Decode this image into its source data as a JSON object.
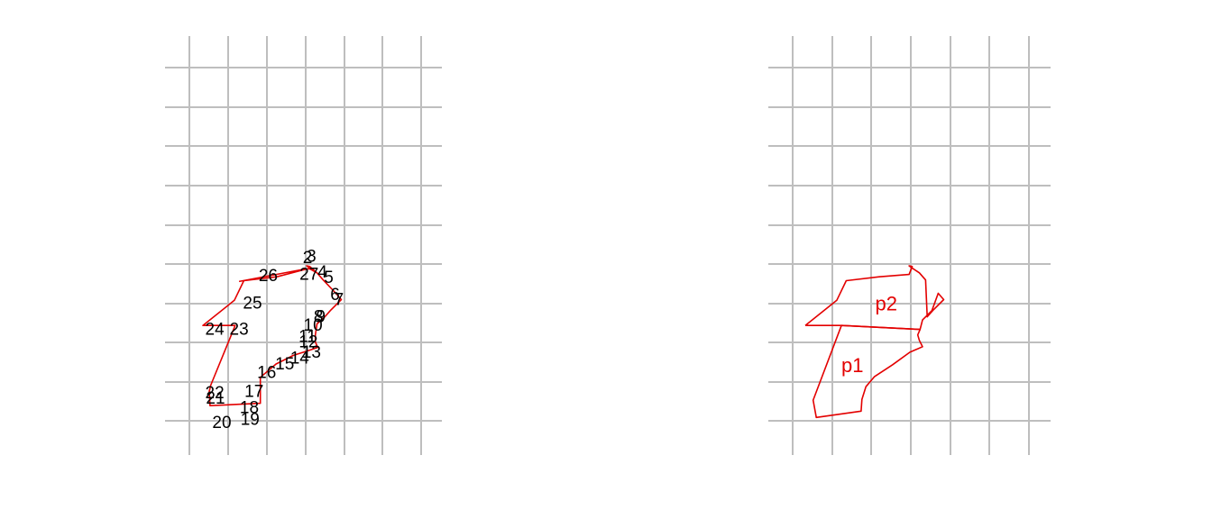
{
  "colors": {
    "polygon": "#e30000",
    "grid": "#bebebe",
    "label": "#000000",
    "background": "#ffffff"
  },
  "left_panel": {
    "outline": [
      [
        1.63,
        1.75
      ],
      [
        2.48,
        1.91
      ],
      [
        2.53,
        1.91
      ],
      [
        2.62,
        1.86
      ],
      [
        2.7,
        1.77
      ],
      [
        2.86,
        1.6
      ],
      [
        2.93,
        1.52
      ],
      [
        2.79,
        1.38
      ],
      [
        2.72,
        1.3
      ],
      [
        2.62,
        1.21
      ],
      [
        2.6,
        1.07
      ],
      [
        2.6,
        0.98
      ],
      [
        2.63,
        0.91
      ],
      [
        2.48,
        0.86
      ],
      [
        2.32,
        0.81
      ],
      [
        2.1,
        0.7
      ],
      [
        1.9,
        0.53
      ],
      [
        1.9,
        0.31
      ],
      [
        1.9,
        0.2
      ],
      [
        1.26,
        0.17
      ],
      [
        1.25,
        0.35
      ],
      [
        1.27,
        0.43
      ],
      [
        1.58,
        1.19
      ],
      [
        1.17,
        1.19
      ],
      [
        1.57,
        1.51
      ],
      [
        1.69,
        1.76
      ],
      [
        2.11,
        1.81
      ],
      [
        2.53,
        1.92
      ],
      [
        2.49,
        1.95
      ],
      [
        2.53,
        1.94
      ],
      [
        2.62,
        1.86
      ]
    ],
    "vertex_labels": [
      {
        "text": "3",
        "x": 2.55,
        "y": 2.06
      },
      {
        "text": "2",
        "x": 2.5,
        "y": 2.04
      },
      {
        "text": "4",
        "x": 2.69,
        "y": 1.86
      },
      {
        "text": "5",
        "x": 2.77,
        "y": 1.79
      },
      {
        "text": "6",
        "x": 2.85,
        "y": 1.57
      },
      {
        "text": "7",
        "x": 2.9,
        "y": 1.51
      },
      {
        "text": "8",
        "x": 2.64,
        "y": 1.29
      },
      {
        "text": "9",
        "x": 2.67,
        "y": 1.29
      },
      {
        "text": "10",
        "x": 2.57,
        "y": 1.18
      },
      {
        "text": "11",
        "x": 2.5,
        "y": 1.04
      },
      {
        "text": "12",
        "x": 2.51,
        "y": 0.97
      },
      {
        "text": "13",
        "x": 2.55,
        "y": 0.84
      },
      {
        "text": "14",
        "x": 2.4,
        "y": 0.76
      },
      {
        "text": "15",
        "x": 2.21,
        "y": 0.69
      },
      {
        "text": "16",
        "x": 1.98,
        "y": 0.58
      },
      {
        "text": "17",
        "x": 1.82,
        "y": 0.34
      },
      {
        "text": "18",
        "x": 1.76,
        "y": 0.13
      },
      {
        "text": "19",
        "x": 1.77,
        "y": -0.02
      },
      {
        "text": "20",
        "x": 1.41,
        "y": -0.06
      },
      {
        "text": "21",
        "x": 1.33,
        "y": 0.25
      },
      {
        "text": "22",
        "x": 1.32,
        "y": 0.32
      },
      {
        "text": "23",
        "x": 1.63,
        "y": 1.13
      },
      {
        "text": "24",
        "x": 1.32,
        "y": 1.13
      },
      {
        "text": "25",
        "x": 1.8,
        "y": 1.46
      },
      {
        "text": "26",
        "x": 2.0,
        "y": 1.81
      },
      {
        "text": "27",
        "x": 2.52,
        "y": 1.83
      }
    ]
  },
  "right_panel": {
    "p1": [
      [
        1.63,
        1.19
      ],
      [
        2.63,
        1.14
      ],
      [
        2.6,
        1.07
      ],
      [
        2.62,
        1.0
      ],
      [
        2.66,
        0.92
      ],
      [
        2.5,
        0.85
      ],
      [
        2.28,
        0.69
      ],
      [
        2.05,
        0.54
      ],
      [
        1.94,
        0.41
      ],
      [
        1.89,
        0.25
      ],
      [
        1.88,
        0.1
      ],
      [
        1.31,
        0.02
      ],
      [
        1.27,
        0.24
      ],
      [
        1.63,
        1.19
      ]
    ],
    "p2": [
      [
        1.17,
        1.19
      ],
      [
        1.63,
        1.19
      ],
      [
        2.63,
        1.14
      ],
      [
        2.66,
        1.26
      ],
      [
        2.78,
        1.38
      ],
      [
        2.86,
        1.6
      ],
      [
        2.93,
        1.52
      ],
      [
        2.79,
        1.38
      ],
      [
        2.72,
        1.3
      ],
      [
        2.7,
        1.77
      ],
      [
        2.62,
        1.86
      ],
      [
        2.53,
        1.92
      ],
      [
        2.49,
        1.95
      ],
      [
        2.53,
        1.94
      ],
      [
        2.49,
        1.84
      ],
      [
        2.11,
        1.81
      ],
      [
        1.69,
        1.76
      ],
      [
        1.57,
        1.51
      ],
      [
        1.17,
        1.19
      ]
    ],
    "labels": [
      {
        "text": "p1",
        "x": 1.77,
        "y": 0.66
      },
      {
        "text": "p2",
        "x": 2.2,
        "y": 1.45
      }
    ]
  }
}
